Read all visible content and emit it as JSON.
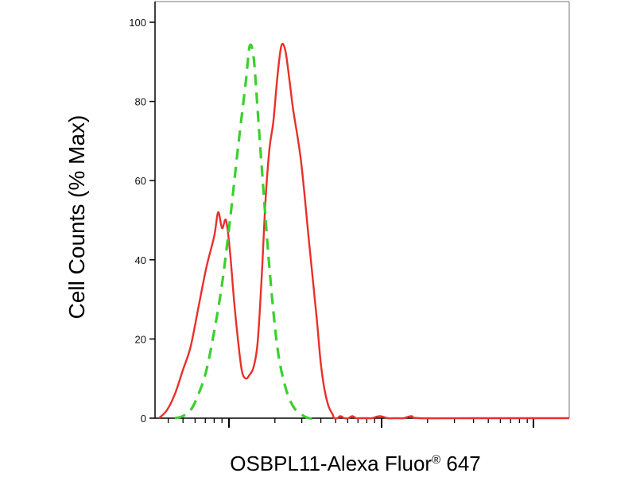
{
  "chart_data": {
    "type": "line",
    "xlabel": "OSBPL11-Alexa Fluor",
    "xlabel_superscript": "®",
    "xlabel_suffix": " 647",
    "ylabel": "Cell Counts (% Max)",
    "xscale": "log",
    "ylim": [
      0,
      100
    ],
    "yticks": [
      0,
      20,
      40,
      60,
      80,
      100
    ],
    "grid": false,
    "series": [
      {
        "style": "solid",
        "color": "#e8302a",
        "x": [
          0,
          10,
          20,
          30,
          40,
          50,
          60,
          70,
          75,
          80,
          85,
          90,
          95,
          100,
          105,
          110,
          115,
          120,
          125,
          130,
          135,
          140,
          145,
          150,
          155,
          160,
          165,
          170,
          180,
          190,
          200,
          205,
          210,
          215,
          220,
          222,
          226,
          230,
          235,
          240,
          245,
          250,
          255,
          260,
          265,
          270,
          280,
          290,
          300,
          310,
          320,
          330,
          400,
          500,
          520
        ],
        "y": [
          0,
          2,
          6,
          12,
          18,
          28,
          38,
          46,
          52,
          48,
          50,
          42,
          30,
          20,
          12,
          10,
          11,
          13,
          19,
          35,
          55,
          68,
          75,
          86,
          94,
          93,
          86,
          78,
          65,
          45,
          25,
          14,
          7,
          3,
          1,
          0,
          0,
          0.5,
          0,
          0,
          0.5,
          0,
          0,
          0,
          0,
          0,
          0.5,
          0,
          0,
          0,
          0.5,
          0,
          0,
          0,
          0
        ]
      },
      {
        "style": "dashed",
        "color": "#3ccf2f",
        "x": [
          20,
          30,
          40,
          50,
          60,
          70,
          80,
          90,
          100,
          110,
          115,
          120,
          125,
          130,
          140,
          150,
          160,
          170,
          180,
          190,
          200
        ],
        "y": [
          0,
          0.5,
          2,
          6,
          12,
          22,
          34,
          50,
          68,
          85,
          94,
          91,
          78,
          64,
          38,
          18,
          8,
          3,
          1,
          0,
          0
        ]
      }
    ]
  }
}
